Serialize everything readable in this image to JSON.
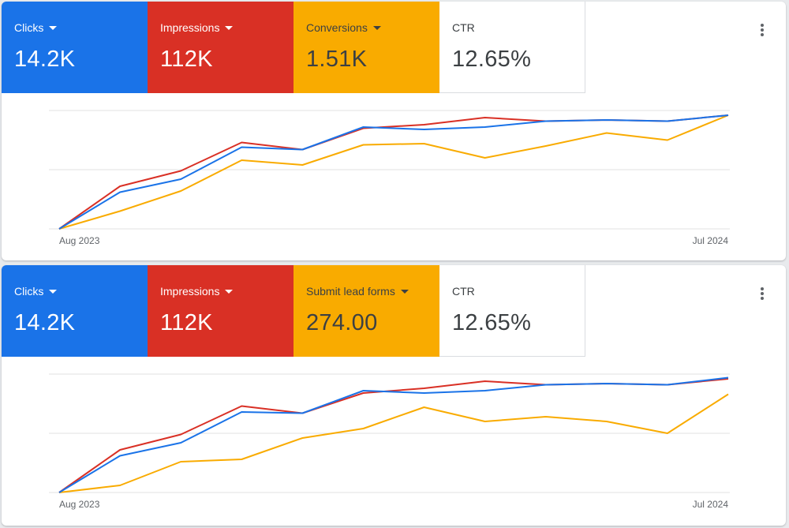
{
  "cards": [
    {
      "tiles": [
        {
          "label": "Clicks",
          "value": "14.2K",
          "bg": "#1a73e8",
          "fg": "#ffffff",
          "dropdown": true
        },
        {
          "label": "Impressions",
          "value": "112K",
          "bg": "#d93025",
          "fg": "#ffffff",
          "dropdown": true
        },
        {
          "label": "Conversions",
          "value": "1.51K",
          "bg": "#f9ab00",
          "fg": "#3c4043",
          "dropdown": true
        },
        {
          "label": "CTR",
          "value": "12.65%",
          "bg": "#ffffff",
          "fg": "#3c4043",
          "dropdown": false
        }
      ]
    },
    {
      "tiles": [
        {
          "label": "Clicks",
          "value": "14.2K",
          "bg": "#1a73e8",
          "fg": "#ffffff",
          "dropdown": true
        },
        {
          "label": "Impressions",
          "value": "112K",
          "bg": "#d93025",
          "fg": "#ffffff",
          "dropdown": true
        },
        {
          "label": "Submit lead forms",
          "value": "274.00",
          "bg": "#f9ab00",
          "fg": "#3c4043",
          "dropdown": true
        },
        {
          "label": "CTR",
          "value": "12.65%",
          "bg": "#ffffff",
          "fg": "#3c4043",
          "dropdown": false
        }
      ]
    }
  ],
  "chart_data": [
    {
      "type": "line",
      "x": [
        "Aug 2023",
        "Sep 2023",
        "Oct 2023",
        "Nov 2023",
        "Dec 2023",
        "Jan 2024",
        "Feb 2024",
        "Mar 2024",
        "Apr 2024",
        "May 2024",
        "Jun 2024",
        "Jul 2024"
      ],
      "xticks": [
        "Aug 2023",
        "Jul 2024"
      ],
      "ylim": [
        0,
        100
      ],
      "grid": true,
      "series": [
        {
          "color": "#1a73e8",
          "values": [
            0,
            31,
            42,
            69,
            67,
            86,
            84,
            86,
            91,
            92,
            91,
            96
          ]
        },
        {
          "color": "#d93025",
          "values": [
            0,
            36,
            49,
            73,
            67,
            85,
            88,
            94,
            91,
            92,
            91,
            96
          ]
        },
        {
          "color": "#f9ab00",
          "values": [
            0,
            15,
            32,
            58,
            54,
            71,
            72,
            60,
            70,
            81,
            75,
            96
          ]
        }
      ]
    },
    {
      "type": "line",
      "x": [
        "Aug 2023",
        "Sep 2023",
        "Oct 2023",
        "Nov 2023",
        "Dec 2023",
        "Jan 2024",
        "Feb 2024",
        "Mar 2024",
        "Apr 2024",
        "May 2024",
        "Jun 2024",
        "Jul 2024"
      ],
      "xticks": [
        "Aug 2023",
        "Jul 2024"
      ],
      "ylim": [
        0,
        100
      ],
      "grid": true,
      "series": [
        {
          "color": "#1a73e8",
          "values": [
            0,
            31,
            42,
            68,
            67,
            86,
            84,
            86,
            91,
            92,
            91,
            97
          ]
        },
        {
          "color": "#d93025",
          "values": [
            0,
            36,
            49,
            73,
            67,
            84,
            88,
            94,
            91,
            92,
            91,
            96
          ]
        },
        {
          "color": "#f9ab00",
          "values": [
            0,
            6,
            26,
            28,
            46,
            54,
            72,
            60,
            64,
            60,
            50,
            83
          ]
        }
      ]
    }
  ]
}
